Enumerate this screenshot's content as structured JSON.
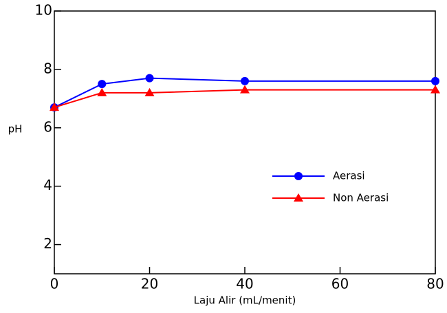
{
  "chart_data": {
    "type": "line",
    "x_label": "Laju Alir (mL/menit)",
    "y_label": "pH",
    "x": [
      0,
      10,
      20,
      40,
      80
    ],
    "series": [
      {
        "name": "Aerasi",
        "color": "#0000ff",
        "marker": "circle",
        "values": [
          6.7,
          7.5,
          7.7,
          7.6,
          7.6
        ]
      },
      {
        "name": "Non Aerasi",
        "color": "#ff0000",
        "marker": "triangle",
        "values": [
          6.7,
          7.2,
          7.2,
          7.3,
          7.3
        ]
      }
    ],
    "xlim": [
      0,
      80
    ],
    "xticks": [
      0,
      20,
      40,
      60,
      80
    ],
    "ylim": [
      1,
      10
    ],
    "yticks": [
      2,
      4,
      6,
      8,
      10
    ],
    "grid": false,
    "legend": "right"
  }
}
